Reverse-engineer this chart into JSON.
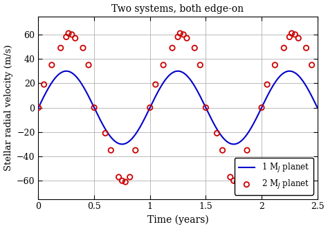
{
  "title": "Two systems, both edge-on",
  "xlabel": "Time (years)",
  "ylabel": "Stellar radial velocity (m/s)",
  "xlim": [
    0,
    2.5
  ],
  "ylim": [
    -75,
    75
  ],
  "yticks": [
    -60,
    -40,
    -20,
    0,
    20,
    40,
    60
  ],
  "xticks": [
    0,
    0.5,
    1.0,
    1.5,
    2.0,
    2.5
  ],
  "sine_amplitude": 30,
  "sine_period": 1.0,
  "line_color": "#0000cc",
  "scatter_color": "#cc0000",
  "background_color": "#ffffff",
  "grid_color": "#b0b0b0",
  "scatter_t": [
    0.0,
    0.05,
    0.12,
    0.2,
    0.25,
    0.27,
    0.3,
    0.33,
    0.4,
    0.45,
    0.5,
    0.6,
    0.65,
    0.72,
    0.75,
    0.78,
    0.82,
    0.87,
    1.0,
    1.05,
    1.12,
    1.2,
    1.25,
    1.27,
    1.3,
    1.33,
    1.4,
    1.45,
    1.5,
    1.6,
    1.65,
    1.72,
    1.75,
    1.78,
    1.82,
    1.87,
    2.0,
    2.05,
    2.12,
    2.2,
    2.25,
    2.27,
    2.3,
    2.33,
    2.4,
    2.45
  ],
  "scatter_y": [
    0,
    19,
    35,
    49,
    58,
    61,
    60,
    57,
    49,
    35,
    0,
    -21,
    -35,
    -57,
    -60,
    -61,
    -57,
    -35,
    0,
    19,
    35,
    49,
    58,
    61,
    60,
    57,
    49,
    35,
    0,
    -21,
    -35,
    -57,
    -60,
    -61,
    -57,
    -35,
    0,
    19,
    35,
    49,
    58,
    61,
    60,
    57,
    49,
    35
  ]
}
